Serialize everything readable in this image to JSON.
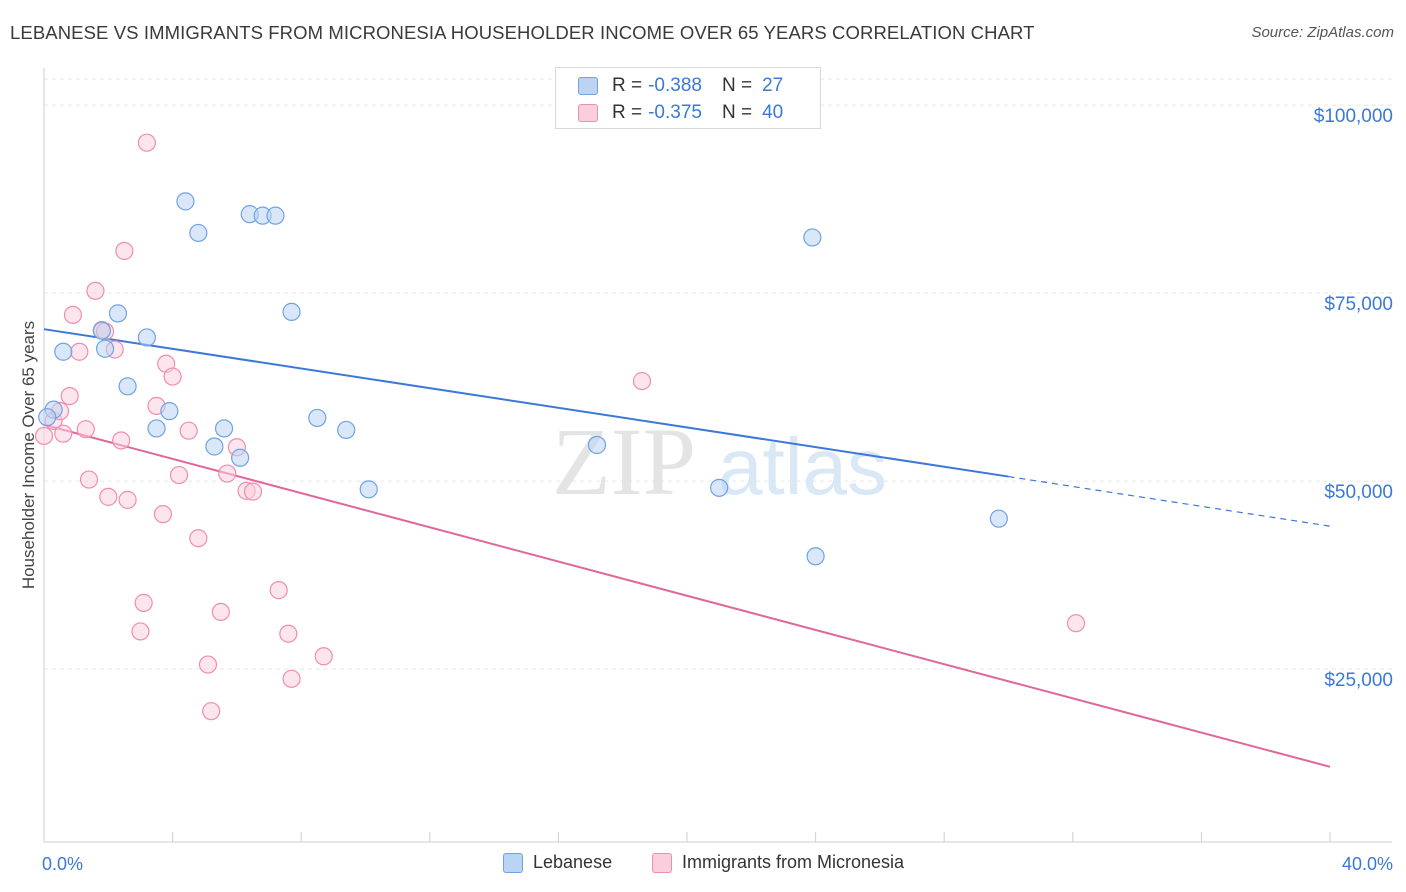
{
  "chart_data": {
    "type": "scatter",
    "title": "LEBANESE VS IMMIGRANTS FROM MICRONESIA HOUSEHOLDER INCOME OVER 65 YEARS CORRELATION CHART",
    "source": "Source: ZipAtlas.com",
    "xlabel": "",
    "ylabel": "Householder Income Over 65 years",
    "xlim": [
      0,
      40
    ],
    "ylim": [
      2000,
      106000
    ],
    "x_tick_labels": [
      "0.0%",
      "40.0%"
    ],
    "y_ticks": [
      25000,
      50000,
      75000,
      100000
    ],
    "y_tick_labels": [
      "$25,000",
      "$50,000",
      "$75,000",
      "$100,000"
    ],
    "watermark": {
      "zip": "ZIP",
      "atlas": "atlas"
    },
    "stats_legend": {
      "r_label": "R =",
      "n_label": "N =",
      "entries": [
        {
          "series": "Lebanese",
          "r": "-0.388",
          "n": "27"
        },
        {
          "series": "Immigrants from Micronesia",
          "r": "-0.375",
          "n": "40"
        }
      ]
    },
    "series": [
      {
        "name": "Lebanese",
        "color": "#6fa3e4",
        "fill": "#bcd4f3",
        "line_color": "#3b78d8",
        "trend": {
          "x0": 0.0,
          "y0": 70200,
          "x1": 30.0,
          "y1": 50600,
          "x_dash_end": 40.0,
          "y_dash_end": 44000
        },
        "points": [
          [
            0.3,
            59500
          ],
          [
            0.6,
            67200
          ],
          [
            1.8,
            70000
          ],
          [
            1.9,
            67600
          ],
          [
            2.3,
            72300
          ],
          [
            2.6,
            62600
          ],
          [
            3.2,
            69100
          ],
          [
            3.5,
            57000
          ],
          [
            3.9,
            59300
          ],
          [
            4.4,
            87200
          ],
          [
            4.8,
            83000
          ],
          [
            5.3,
            54600
          ],
          [
            5.6,
            57000
          ],
          [
            6.1,
            53100
          ],
          [
            6.4,
            85500
          ],
          [
            6.8,
            85300
          ],
          [
            7.2,
            85300
          ],
          [
            7.7,
            72500
          ],
          [
            8.5,
            58400
          ],
          [
            9.4,
            56800
          ],
          [
            10.1,
            48900
          ],
          [
            17.2,
            54800
          ],
          [
            21.0,
            49100
          ],
          [
            23.9,
            82400
          ],
          [
            24.0,
            40000
          ],
          [
            29.7,
            45000
          ],
          [
            0.1,
            58500
          ]
        ]
      },
      {
        "name": "Immigrants from Micronesia",
        "color": "#f08db0",
        "fill": "#f9cfdd",
        "line_color": "#e0679a",
        "trend": {
          "x0": 0.0,
          "y0": 57500,
          "x1": 40.0,
          "y1": 12000
        },
        "points": [
          [
            0.0,
            56000
          ],
          [
            0.3,
            58000
          ],
          [
            0.5,
            59300
          ],
          [
            0.6,
            56300
          ],
          [
            0.8,
            61300
          ],
          [
            0.9,
            72100
          ],
          [
            1.1,
            67200
          ],
          [
            1.3,
            56900
          ],
          [
            1.4,
            50200
          ],
          [
            1.6,
            75300
          ],
          [
            1.8,
            70100
          ],
          [
            2.0,
            47900
          ],
          [
            2.2,
            67500
          ],
          [
            2.4,
            55400
          ],
          [
            2.6,
            47500
          ],
          [
            3.0,
            30000
          ],
          [
            3.1,
            33800
          ],
          [
            3.2,
            95000
          ],
          [
            3.5,
            60000
          ],
          [
            3.7,
            45600
          ],
          [
            3.8,
            65600
          ],
          [
            4.0,
            63900
          ],
          [
            4.2,
            50800
          ],
          [
            4.5,
            56700
          ],
          [
            4.8,
            42400
          ],
          [
            5.1,
            25600
          ],
          [
            5.2,
            19400
          ],
          [
            5.5,
            32600
          ],
          [
            5.7,
            51000
          ],
          [
            6.0,
            54500
          ],
          [
            6.3,
            48700
          ],
          [
            6.5,
            48600
          ],
          [
            7.3,
            35500
          ],
          [
            7.6,
            29700
          ],
          [
            7.7,
            23700
          ],
          [
            8.7,
            26700
          ],
          [
            18.6,
            63300
          ],
          [
            32.1,
            31100
          ],
          [
            2.5,
            80600
          ],
          [
            1.9,
            69900
          ]
        ]
      }
    ]
  }
}
